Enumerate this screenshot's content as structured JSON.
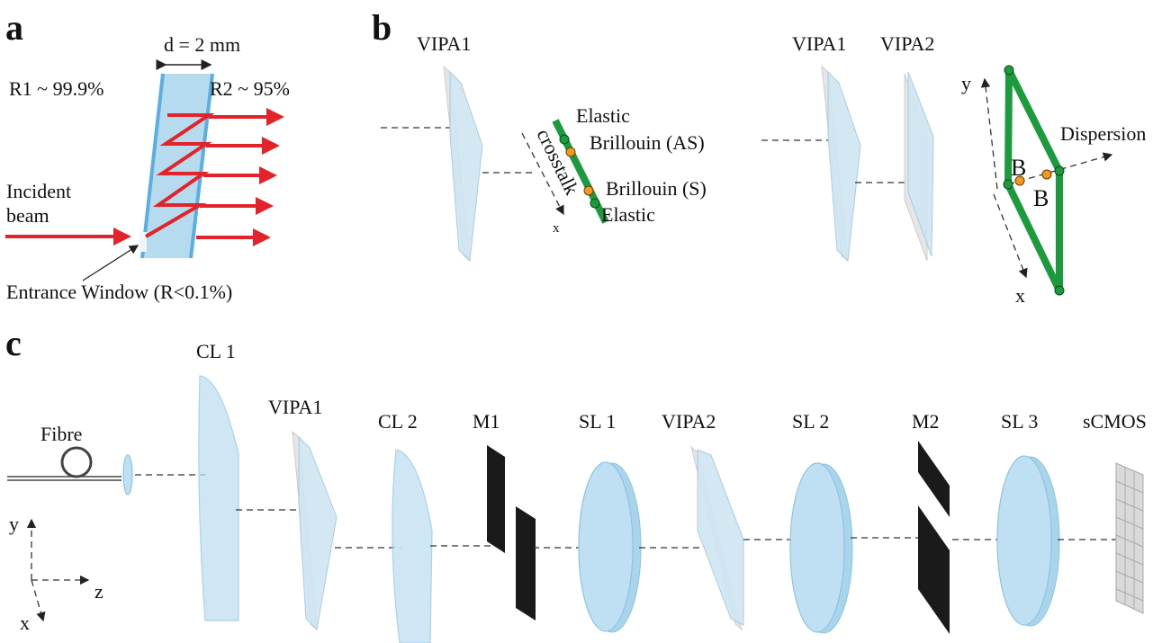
{
  "panel_a": {
    "label": "a",
    "thickness": "d = 2 mm",
    "r1": "R1 ~ 99.9%",
    "r2": "R2 ~ 95%",
    "incident": [
      "Incident",
      "beam"
    ],
    "window": "Entrance Window (R<0.1%)"
  },
  "panel_b": {
    "label": "b",
    "left": {
      "vipa": "VIPA1",
      "elastic_top": "Elastic",
      "brillouin_as": "Brillouin (AS)",
      "crosstalk": "crosstalk",
      "brillouin_s": "Brillouin (S)",
      "elastic_bottom": "Elastic",
      "axis_x": "x"
    },
    "right": {
      "vipa1": "VIPA1",
      "vipa2": "VIPA2",
      "axis_y": "y",
      "dispersion": "Dispersion",
      "b_upper": "B",
      "b_lower": "B",
      "axis_x": "x"
    }
  },
  "panel_c": {
    "label": "c",
    "components": [
      "Fibre",
      "CL 1",
      "VIPA1",
      "CL 2",
      "M1",
      "SL 1",
      "VIPA2",
      "SL 2",
      "M2",
      "SL 3",
      "sCMOS"
    ],
    "axes": {
      "y": "y",
      "z": "z",
      "x": "x"
    }
  }
}
